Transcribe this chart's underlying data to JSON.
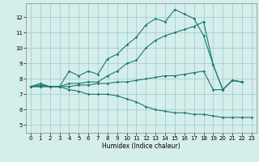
{
  "xlabel": "Humidex (Indice chaleur)",
  "bg_color": "#d4eeec",
  "grid_color": "#a0c8c4",
  "line_color": "#1a7a6e",
  "xlim": [
    -0.5,
    23.5
  ],
  "ylim": [
    4.5,
    12.9
  ],
  "xticks": [
    0,
    1,
    2,
    3,
    4,
    5,
    6,
    7,
    8,
    9,
    10,
    11,
    12,
    13,
    14,
    15,
    16,
    17,
    18,
    19,
    20,
    21,
    22,
    23
  ],
  "yticks": [
    5,
    6,
    7,
    8,
    9,
    10,
    11,
    12
  ],
  "curve1_x": [
    0,
    1,
    2,
    3,
    4,
    5,
    6,
    7,
    8,
    9,
    10,
    11,
    12,
    13,
    14,
    15,
    16,
    17,
    18,
    19,
    20,
    21,
    22
  ],
  "curve1_y": [
    7.5,
    7.7,
    7.5,
    7.5,
    8.5,
    8.2,
    8.5,
    8.3,
    9.3,
    9.6,
    10.2,
    10.7,
    11.5,
    11.9,
    11.7,
    12.5,
    12.2,
    11.9,
    10.8,
    8.9,
    7.3,
    7.9,
    7.8
  ],
  "curve2_x": [
    0,
    1,
    2,
    3,
    4,
    5,
    6,
    7,
    8,
    9,
    10,
    11,
    12,
    13,
    14,
    15,
    16,
    17,
    18,
    19,
    20,
    21,
    22
  ],
  "curve2_y": [
    7.5,
    7.6,
    7.5,
    7.5,
    7.7,
    7.7,
    7.8,
    7.8,
    8.2,
    8.5,
    9.0,
    9.2,
    10.0,
    10.5,
    10.8,
    11.0,
    11.2,
    11.4,
    11.7,
    8.9,
    7.3,
    7.9,
    7.8
  ],
  "curve3_x": [
    0,
    1,
    2,
    3,
    4,
    5,
    6,
    7,
    8,
    9,
    10,
    11,
    12,
    13,
    14,
    15,
    16,
    17,
    18,
    19,
    20,
    21,
    22,
    23
  ],
  "curve3_y": [
    7.5,
    7.5,
    7.5,
    7.5,
    7.3,
    7.2,
    7.0,
    7.0,
    7.0,
    6.9,
    6.7,
    6.5,
    6.2,
    6.0,
    5.9,
    5.8,
    5.8,
    5.7,
    5.7,
    5.6,
    5.5,
    5.5,
    5.5,
    5.5
  ],
  "curve4_x": [
    0,
    1,
    2,
    3,
    4,
    5,
    6,
    7,
    8,
    9,
    10,
    11,
    12,
    13,
    14,
    15,
    16,
    17,
    18,
    19,
    20,
    21,
    22
  ],
  "curve4_y": [
    7.5,
    7.5,
    7.5,
    7.5,
    7.5,
    7.6,
    7.6,
    7.7,
    7.7,
    7.8,
    7.8,
    7.9,
    8.0,
    8.1,
    8.2,
    8.2,
    8.3,
    8.4,
    8.5,
    7.3,
    7.3,
    7.9,
    7.8
  ],
  "lw": 0.8,
  "ms": 1.8,
  "tick_fontsize": 5.0,
  "xlabel_fontsize": 5.5
}
